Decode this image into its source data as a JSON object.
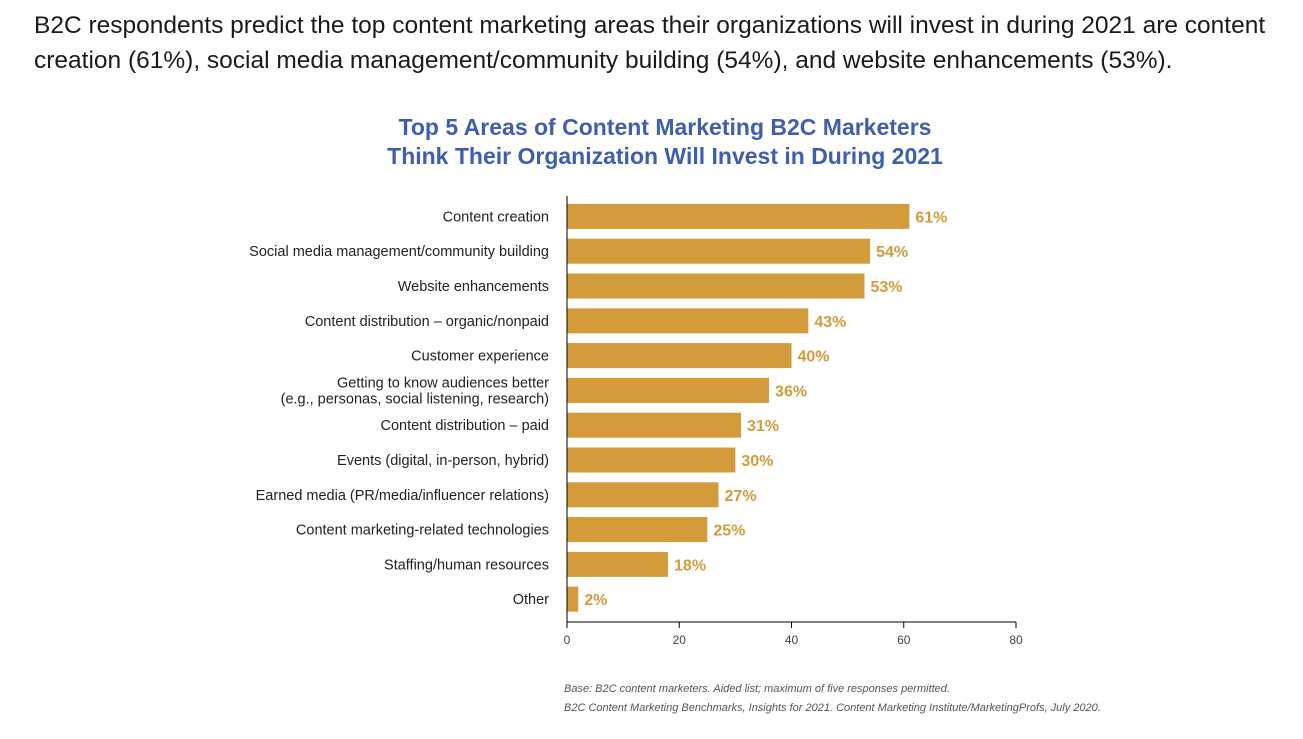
{
  "intro_text": "B2C respondents predict the top content marketing areas their organizations will invest in during 2021 are content creation (61%), social media management/community building (54%), and website enhancements (53%).",
  "colors": {
    "bar": "#d49b3b",
    "title": "#3f5fae",
    "axis": "#000000"
  },
  "chart_data": {
    "type": "bar",
    "orientation": "horizontal",
    "title_lines": [
      "Top 5 Areas of Content Marketing B2C Marketers",
      "Think Their Organization Will Invest in During 2021"
    ],
    "categories": [
      [
        "Content creation"
      ],
      [
        "Social media management/community building"
      ],
      [
        "Website enhancements"
      ],
      [
        "Content distribution – organic/nonpaid"
      ],
      [
        "Customer experience"
      ],
      [
        "Getting to know audiences better",
        "(e.g., personas, social listening, research)"
      ],
      [
        "Content distribution – paid"
      ],
      [
        "Events (digital, in-person, hybrid)"
      ],
      [
        "Earned media (PR/media/influencer relations)"
      ],
      [
        "Content marketing-related technologies"
      ],
      [
        "Staffing/human resources"
      ],
      [
        "Other"
      ]
    ],
    "values": [
      61,
      54,
      53,
      43,
      40,
      36,
      31,
      30,
      27,
      25,
      18,
      2
    ],
    "value_labels": [
      "61%",
      "54%",
      "53%",
      "43%",
      "40%",
      "36%",
      "31%",
      "30%",
      "27%",
      "25%",
      "18%",
      "2%"
    ],
    "xlim": [
      0,
      80
    ],
    "xticks": [
      0,
      20,
      40,
      60,
      80
    ],
    "grid": false,
    "legend": "none"
  },
  "footnotes": {
    "base": "Base: B2C content marketers. Aided list; maximum of five responses permitted.",
    "source": "B2C Content Marketing Benchmarks, Insights for 2021. Content Marketing Institute/MarketingProfs, July 2020."
  }
}
